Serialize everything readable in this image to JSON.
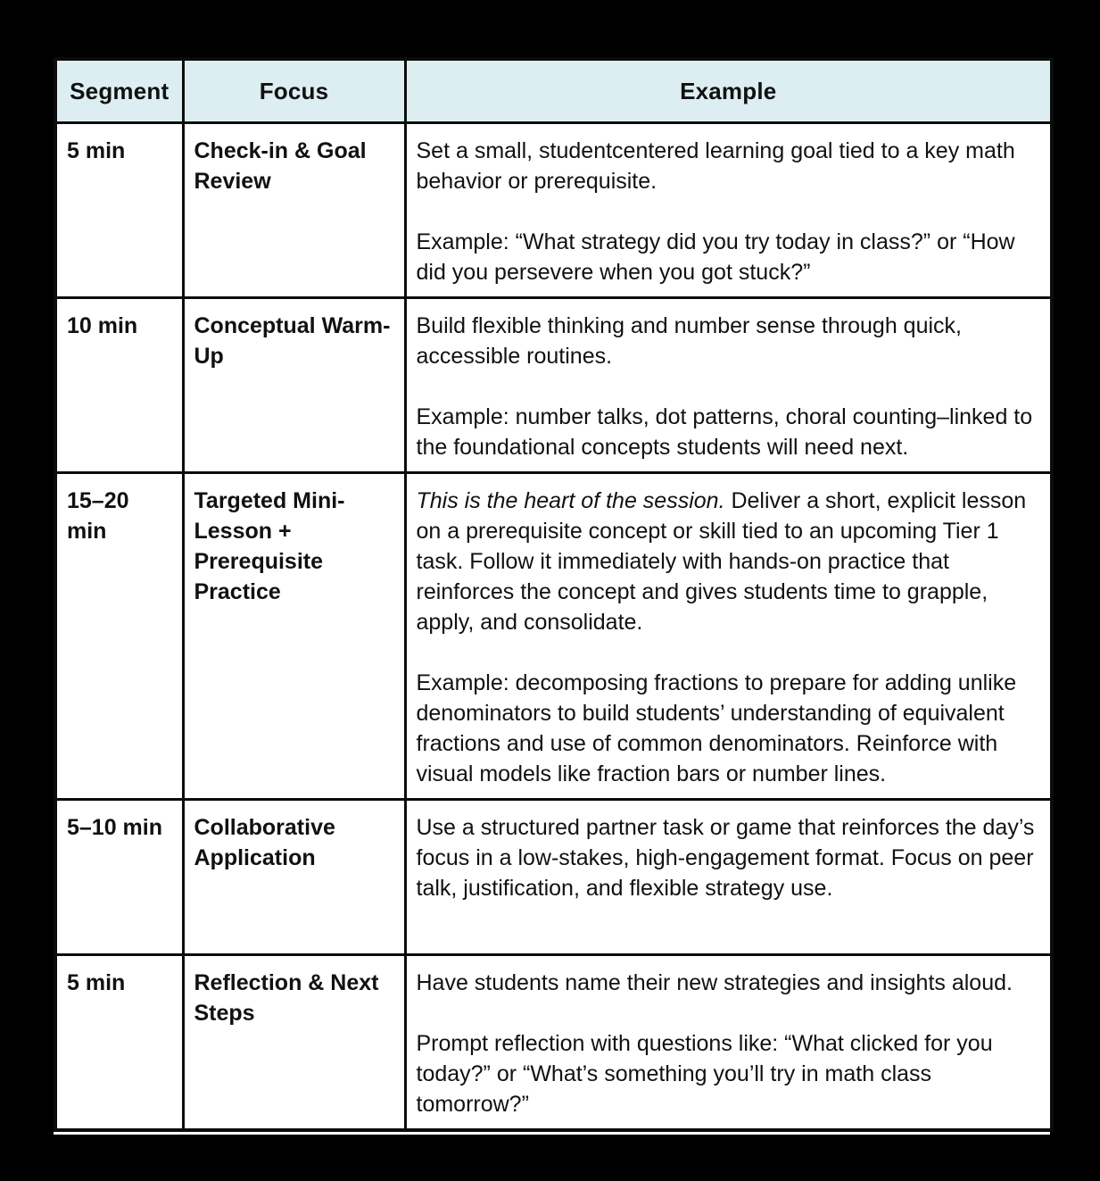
{
  "colors": {
    "page_background": "#000000",
    "cell_background": "#ffffff",
    "header_background": "#ddeef3",
    "border": "#0c0c0c",
    "text": "#111111"
  },
  "table": {
    "columns": {
      "segment": "Segment",
      "focus": "Focus",
      "example": "Example"
    },
    "rows": [
      {
        "segment": "5 min",
        "focus": "Check-in & Goal Review",
        "example": [
          {
            "text": "Set a small, studentcentered learning goal tied to a key math behavior or prerequisite."
          },
          {
            "text": "Example: “What strategy did you try today in class?” or “How did you persevere when you got stuck?”"
          }
        ]
      },
      {
        "segment": "10 min",
        "focus": "Conceptual Warm-Up",
        "example": [
          {
            "text": "Build flexible thinking and number sense through quick, accessible routines."
          },
          {
            "text": "Example: number talks, dot patterns, choral counting–linked to the foundational concepts students will need next."
          }
        ]
      },
      {
        "segment": "15–20\nmin",
        "focus": "Targeted Mini-Lesson + Prerequisite Practice",
        "example": [
          {
            "italic": "This is the heart of the session.",
            "text": " Deliver a short, explicit lesson on a prerequisite concept or skill tied to an upcoming Tier 1 task. Follow it immediately with hands-on practice that reinforces the concept and gives students time to grapple, apply, and consolidate."
          },
          {
            "text": "Example: decomposing fractions to prepare for adding unlike denominators to build students’ understanding of equivalent fractions and use of common denominators. Reinforce with visual models like fraction bars or number lines."
          }
        ]
      },
      {
        "segment": "5–10 min",
        "focus": "Collaborative Application",
        "example": [
          {
            "text": "Use a structured partner task or game that reinforces the day’s focus in a low-stakes, high-engagement format. Focus on peer talk, justification, and flexible strategy use."
          }
        ]
      },
      {
        "segment": "5 min",
        "focus": "Reflection & Next Steps",
        "example": [
          {
            "text": "Have students name their new strategies and insights aloud."
          },
          {
            "text": "Prompt reflection with questions like: “What clicked for you today?” or “What’s something you’ll try in math class tomorrow?”"
          }
        ]
      }
    ]
  }
}
